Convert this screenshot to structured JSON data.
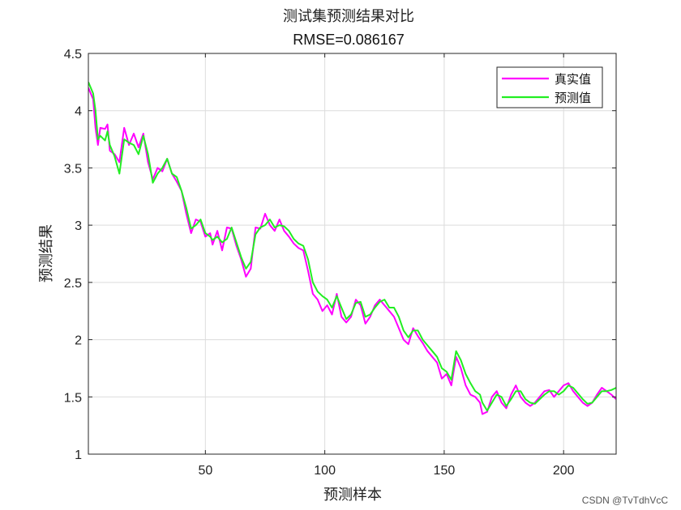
{
  "watermark": "CSDN @TvTdhVcC",
  "chart_data": {
    "type": "line",
    "title": "测试集预测结果对比",
    "subtitle": "RMSE=0.086167",
    "xlabel": "预测样本",
    "ylabel": "预测结果",
    "xlim": [
      1,
      222
    ],
    "ylim": [
      1,
      4.5
    ],
    "xticks": [
      50,
      100,
      150,
      200
    ],
    "yticks": [
      1,
      1.5,
      2,
      2.5,
      3,
      3.5,
      4,
      4.5
    ],
    "xtick_labels": [
      "50",
      "100",
      "150",
      "200"
    ],
    "ytick_labels": [
      "1",
      "1.5",
      "2",
      "2.5",
      "3",
      "3.5",
      "4",
      "4.5"
    ],
    "grid": true,
    "legend_position": "top-right",
    "series": [
      {
        "name": "真实值",
        "color": "#ff00ff",
        "points": [
          [
            1,
            4.2
          ],
          [
            3,
            4.1
          ],
          [
            4,
            3.85
          ],
          [
            5,
            3.7
          ],
          [
            6,
            3.85
          ],
          [
            8,
            3.84
          ],
          [
            9,
            3.88
          ],
          [
            10,
            3.65
          ],
          [
            12,
            3.62
          ],
          [
            14,
            3.55
          ],
          [
            16,
            3.85
          ],
          [
            18,
            3.7
          ],
          [
            20,
            3.8
          ],
          [
            22,
            3.68
          ],
          [
            24,
            3.8
          ],
          [
            26,
            3.55
          ],
          [
            28,
            3.4
          ],
          [
            30,
            3.5
          ],
          [
            32,
            3.47
          ],
          [
            34,
            3.58
          ],
          [
            36,
            3.45
          ],
          [
            38,
            3.38
          ],
          [
            40,
            3.3
          ],
          [
            42,
            3.1
          ],
          [
            44,
            2.93
          ],
          [
            46,
            3.05
          ],
          [
            48,
            3.03
          ],
          [
            50,
            2.9
          ],
          [
            52,
            2.93
          ],
          [
            53,
            2.83
          ],
          [
            55,
            2.95
          ],
          [
            57,
            2.78
          ],
          [
            59,
            2.98
          ],
          [
            61,
            2.97
          ],
          [
            63,
            2.82
          ],
          [
            65,
            2.7
          ],
          [
            67,
            2.55
          ],
          [
            69,
            2.62
          ],
          [
            71,
            2.98
          ],
          [
            73,
            2.97
          ],
          [
            75,
            3.1
          ],
          [
            77,
            3.0
          ],
          [
            79,
            2.95
          ],
          [
            81,
            3.05
          ],
          [
            83,
            2.95
          ],
          [
            85,
            2.9
          ],
          [
            87,
            2.84
          ],
          [
            89,
            2.8
          ],
          [
            91,
            2.78
          ],
          [
            93,
            2.6
          ],
          [
            95,
            2.4
          ],
          [
            97,
            2.35
          ],
          [
            99,
            2.25
          ],
          [
            101,
            2.3
          ],
          [
            103,
            2.22
          ],
          [
            105,
            2.4
          ],
          [
            107,
            2.2
          ],
          [
            109,
            2.15
          ],
          [
            111,
            2.2
          ],
          [
            113,
            2.35
          ],
          [
            115,
            2.3
          ],
          [
            117,
            2.14
          ],
          [
            119,
            2.2
          ],
          [
            121,
            2.3
          ],
          [
            123,
            2.35
          ],
          [
            125,
            2.3
          ],
          [
            127,
            2.25
          ],
          [
            129,
            2.2
          ],
          [
            131,
            2.1
          ],
          [
            133,
            2.0
          ],
          [
            135,
            1.96
          ],
          [
            137,
            2.1
          ],
          [
            139,
            2.03
          ],
          [
            141,
            1.97
          ],
          [
            143,
            1.9
          ],
          [
            145,
            1.85
          ],
          [
            147,
            1.8
          ],
          [
            149,
            1.66
          ],
          [
            151,
            1.7
          ],
          [
            153,
            1.6
          ],
          [
            155,
            1.85
          ],
          [
            157,
            1.75
          ],
          [
            159,
            1.6
          ],
          [
            161,
            1.52
          ],
          [
            163,
            1.5
          ],
          [
            165,
            1.45
          ],
          [
            166,
            1.35
          ],
          [
            168,
            1.37
          ],
          [
            170,
            1.5
          ],
          [
            172,
            1.55
          ],
          [
            174,
            1.45
          ],
          [
            176,
            1.4
          ],
          [
            178,
            1.52
          ],
          [
            180,
            1.6
          ],
          [
            182,
            1.5
          ],
          [
            184,
            1.45
          ],
          [
            186,
            1.42
          ],
          [
            188,
            1.45
          ],
          [
            190,
            1.5
          ],
          [
            192,
            1.55
          ],
          [
            194,
            1.56
          ],
          [
            196,
            1.5
          ],
          [
            198,
            1.55
          ],
          [
            200,
            1.6
          ],
          [
            202,
            1.62
          ],
          [
            204,
            1.55
          ],
          [
            206,
            1.5
          ],
          [
            208,
            1.45
          ],
          [
            210,
            1.42
          ],
          [
            212,
            1.45
          ],
          [
            214,
            1.52
          ],
          [
            216,
            1.58
          ],
          [
            218,
            1.55
          ],
          [
            220,
            1.52
          ],
          [
            222,
            1.48
          ]
        ]
      },
      {
        "name": "预测值",
        "color": "#22ee22",
        "points": [
          [
            1,
            4.25
          ],
          [
            3,
            4.15
          ],
          [
            4,
            4.0
          ],
          [
            5,
            3.75
          ],
          [
            6,
            3.78
          ],
          [
            8,
            3.74
          ],
          [
            9,
            3.82
          ],
          [
            10,
            3.7
          ],
          [
            12,
            3.6
          ],
          [
            14,
            3.45
          ],
          [
            16,
            3.75
          ],
          [
            18,
            3.72
          ],
          [
            20,
            3.7
          ],
          [
            22,
            3.62
          ],
          [
            24,
            3.78
          ],
          [
            26,
            3.62
          ],
          [
            28,
            3.37
          ],
          [
            30,
            3.45
          ],
          [
            32,
            3.5
          ],
          [
            34,
            3.58
          ],
          [
            36,
            3.45
          ],
          [
            38,
            3.42
          ],
          [
            40,
            3.3
          ],
          [
            42,
            3.15
          ],
          [
            44,
            2.97
          ],
          [
            46,
            3.0
          ],
          [
            48,
            3.05
          ],
          [
            50,
            2.93
          ],
          [
            52,
            2.9
          ],
          [
            53,
            2.87
          ],
          [
            55,
            2.9
          ],
          [
            57,
            2.85
          ],
          [
            59,
            2.88
          ],
          [
            61,
            2.98
          ],
          [
            63,
            2.85
          ],
          [
            65,
            2.72
          ],
          [
            67,
            2.62
          ],
          [
            69,
            2.68
          ],
          [
            71,
            2.92
          ],
          [
            73,
            2.98
          ],
          [
            75,
            3.0
          ],
          [
            77,
            3.05
          ],
          [
            79,
            2.98
          ],
          [
            81,
            3.0
          ],
          [
            83,
            2.99
          ],
          [
            85,
            2.95
          ],
          [
            87,
            2.88
          ],
          [
            89,
            2.84
          ],
          [
            91,
            2.82
          ],
          [
            93,
            2.7
          ],
          [
            95,
            2.5
          ],
          [
            97,
            2.42
          ],
          [
            99,
            2.38
          ],
          [
            101,
            2.35
          ],
          [
            103,
            2.28
          ],
          [
            105,
            2.38
          ],
          [
            107,
            2.28
          ],
          [
            109,
            2.18
          ],
          [
            111,
            2.22
          ],
          [
            113,
            2.32
          ],
          [
            115,
            2.33
          ],
          [
            117,
            2.2
          ],
          [
            119,
            2.22
          ],
          [
            121,
            2.28
          ],
          [
            123,
            2.33
          ],
          [
            125,
            2.35
          ],
          [
            127,
            2.28
          ],
          [
            129,
            2.28
          ],
          [
            131,
            2.2
          ],
          [
            133,
            2.08
          ],
          [
            135,
            2.02
          ],
          [
            137,
            2.08
          ],
          [
            139,
            2.08
          ],
          [
            141,
            2.0
          ],
          [
            143,
            1.95
          ],
          [
            145,
            1.9
          ],
          [
            147,
            1.85
          ],
          [
            149,
            1.75
          ],
          [
            151,
            1.72
          ],
          [
            153,
            1.65
          ],
          [
            155,
            1.9
          ],
          [
            157,
            1.82
          ],
          [
            159,
            1.7
          ],
          [
            161,
            1.62
          ],
          [
            163,
            1.55
          ],
          [
            165,
            1.52
          ],
          [
            166,
            1.45
          ],
          [
            168,
            1.38
          ],
          [
            170,
            1.45
          ],
          [
            172,
            1.52
          ],
          [
            174,
            1.5
          ],
          [
            176,
            1.42
          ],
          [
            178,
            1.48
          ],
          [
            180,
            1.55
          ],
          [
            182,
            1.55
          ],
          [
            184,
            1.48
          ],
          [
            186,
            1.45
          ],
          [
            188,
            1.44
          ],
          [
            190,
            1.48
          ],
          [
            192,
            1.52
          ],
          [
            194,
            1.55
          ],
          [
            196,
            1.55
          ],
          [
            198,
            1.52
          ],
          [
            200,
            1.55
          ],
          [
            202,
            1.6
          ],
          [
            204,
            1.58
          ],
          [
            206,
            1.53
          ],
          [
            208,
            1.48
          ],
          [
            210,
            1.44
          ],
          [
            212,
            1.45
          ],
          [
            214,
            1.5
          ],
          [
            216,
            1.55
          ],
          [
            218,
            1.55
          ],
          [
            220,
            1.56
          ],
          [
            222,
            1.58
          ]
        ]
      }
    ]
  }
}
